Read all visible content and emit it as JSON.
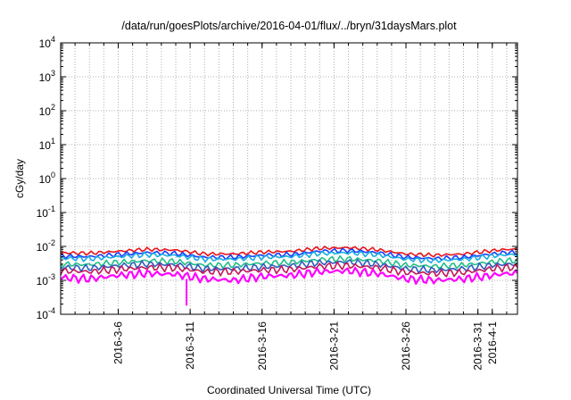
{
  "chart_data": {
    "type": "line",
    "title": "/data/run/goesPlots/archive/2016-04-01/flux/../bryn/31daysMars.plot",
    "xlabel": "Coordinated Universal Time (UTC)",
    "ylabel": "cGy/day",
    "y_scale": "log",
    "ylim": [
      0.0001,
      10000
    ],
    "xlim": [
      "2016-03-02",
      "2016-04-02 18:00"
    ],
    "y_ticks": [
      {
        "base": "10",
        "exp": "-4",
        "value": 0.0001
      },
      {
        "base": "10",
        "exp": "-3",
        "value": 0.001
      },
      {
        "base": "10",
        "exp": "-2",
        "value": 0.01
      },
      {
        "base": "10",
        "exp": "-1",
        "value": 0.1
      },
      {
        "base": "10",
        "exp": "0",
        "value": 1
      },
      {
        "base": "10",
        "exp": "1",
        "value": 10
      },
      {
        "base": "10",
        "exp": "2",
        "value": 100
      },
      {
        "base": "10",
        "exp": "3",
        "value": 1000
      },
      {
        "base": "10",
        "exp": "4",
        "value": 10000
      }
    ],
    "x_ticks": [
      {
        "label": "2016-3-6",
        "date": "2016-03-06"
      },
      {
        "label": "2016-3-11",
        "date": "2016-03-11"
      },
      {
        "label": "2016-3-16",
        "date": "2016-03-16"
      },
      {
        "label": "2016-3-21",
        "date": "2016-03-21"
      },
      {
        "label": "2016-3-26",
        "date": "2016-03-26"
      },
      {
        "label": "2016-3-31",
        "date": "2016-03-31"
      },
      {
        "label": "2016-4-1",
        "date": "2016-04-01"
      }
    ],
    "grid": true,
    "x": [
      "2016-03-02",
      "2016-03-04",
      "2016-03-06",
      "2016-03-08",
      "2016-03-10",
      "2016-03-12",
      "2016-03-14",
      "2016-03-16",
      "2016-03-18",
      "2016-03-20",
      "2016-03-22",
      "2016-03-24",
      "2016-03-26",
      "2016-03-28",
      "2016-03-30",
      "2016-04-01",
      "2016-04-02"
    ],
    "series": [
      {
        "color": "#e8151b",
        "values": [
          0.0065,
          0.0063,
          0.0072,
          0.0082,
          0.0078,
          0.006,
          0.006,
          0.0068,
          0.0072,
          0.0088,
          0.0092,
          0.008,
          0.006,
          0.0055,
          0.006,
          0.0075,
          0.0082
        ]
      },
      {
        "color": "#1a3bff",
        "values": [
          0.0052,
          0.005,
          0.0058,
          0.0066,
          0.0062,
          0.0048,
          0.0048,
          0.0055,
          0.0058,
          0.0072,
          0.0076,
          0.0066,
          0.0048,
          0.0044,
          0.0048,
          0.006,
          0.0066
        ]
      },
      {
        "color": "#17aedf",
        "values": [
          0.0045,
          0.0043,
          0.005,
          0.0057,
          0.0054,
          0.0042,
          0.0042,
          0.0048,
          0.005,
          0.0062,
          0.0065,
          0.0057,
          0.0042,
          0.0038,
          0.0042,
          0.0052,
          0.0057
        ]
      },
      {
        "color": "#1fbf86",
        "values": [
          0.003,
          0.0029,
          0.0034,
          0.0038,
          0.0036,
          0.0028,
          0.0028,
          0.0032,
          0.0034,
          0.0041,
          0.0043,
          0.0038,
          0.0028,
          0.0026,
          0.0028,
          0.0035,
          0.0038
        ]
      },
      {
        "color": "#2f5bbf",
        "values": [
          0.0024,
          0.0023,
          0.0027,
          0.003,
          0.0029,
          0.0022,
          0.0022,
          0.0025,
          0.0027,
          0.0033,
          0.0035,
          0.003,
          0.0022,
          0.002,
          0.0022,
          0.0028,
          0.003
        ]
      },
      {
        "color": "#c0185a",
        "values": [
          0.0019,
          0.0018,
          0.0021,
          0.0024,
          0.0023,
          0.0018,
          0.0018,
          0.002,
          0.0021,
          0.0026,
          0.0027,
          0.0024,
          0.0017,
          0.0016,
          0.0017,
          0.0022,
          0.0024
        ]
      },
      {
        "color": "#ff00ff",
        "values": [
          0.0012,
          0.0011,
          0.0014,
          0.0016,
          0.0015,
          0.0011,
          0.001,
          0.0013,
          0.0014,
          0.0018,
          0.0019,
          0.0016,
          0.0011,
          0.001,
          0.0011,
          0.0014,
          0.0016
        ]
      }
    ],
    "annotations": [
      {
        "color": "#ff00ff",
        "x": "2016-03-10 18:00",
        "y": 0.00018
      }
    ]
  }
}
